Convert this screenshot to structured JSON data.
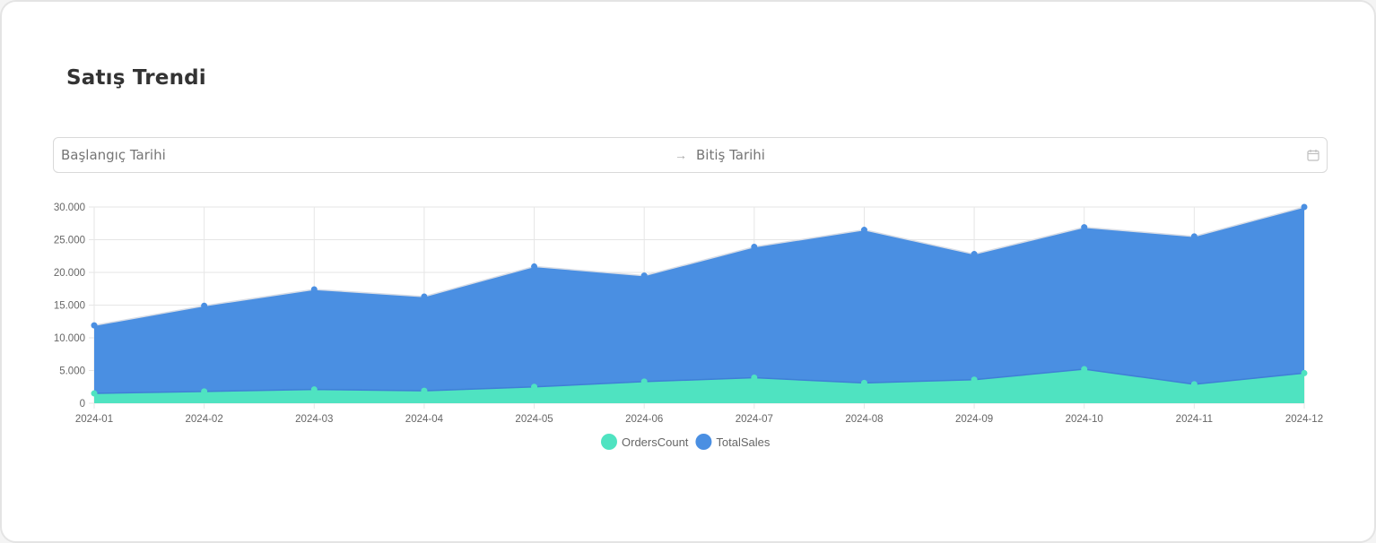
{
  "title": "Satış Trendi",
  "date_range": {
    "start_placeholder": "Başlangıç Tarihi",
    "separator_icon": "arrow-right-icon",
    "end_placeholder": "Bitiş Tarihi",
    "calendar_icon": "calendar-icon"
  },
  "chart_data": {
    "type": "area",
    "stacked": true,
    "x": [
      "2024-01",
      "2024-02",
      "2024-03",
      "2024-04",
      "2024-05",
      "2024-06",
      "2024-07",
      "2024-08",
      "2024-09",
      "2024-10",
      "2024-11",
      "2024-12"
    ],
    "ylim": [
      0,
      30000
    ],
    "y_ticks": [
      "0",
      "5.000",
      "10.000",
      "15.000",
      "20.000",
      "25.000",
      "30.000"
    ],
    "grid": true,
    "legend_position": "bottom",
    "series": [
      {
        "name": "OrdersCount",
        "color": "#4fe3c1",
        "values": [
          1500,
          1800,
          2100,
          1900,
          2500,
          3300,
          3900,
          3100,
          3600,
          5200,
          2900,
          4600
        ]
      },
      {
        "name": "TotalSales",
        "color": "#4a8fe2",
        "values": [
          10400,
          13100,
          15300,
          14400,
          18400,
          16200,
          20000,
          23400,
          19200,
          21700,
          22600,
          25400
        ]
      }
    ]
  }
}
